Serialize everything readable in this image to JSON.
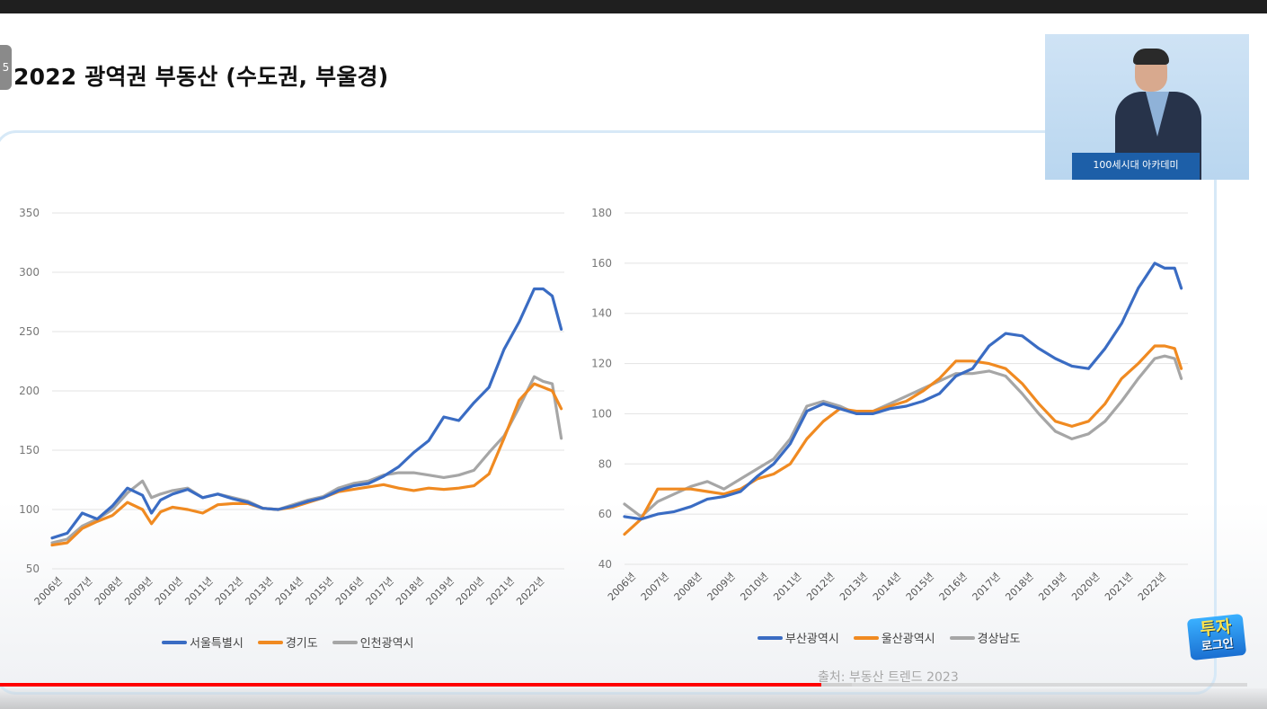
{
  "slide": {
    "number": "5",
    "title": "2022 광역권 부동산 (수도권, 부울경)",
    "source": "출처: 부동산 트렌드 2023"
  },
  "webcam": {
    "podium_text": "100세시대 아카데미"
  },
  "logo": {
    "line1": "투자",
    "line2": "로그인"
  },
  "video": {
    "played_fraction": 0.648,
    "buffered_fraction": 0.672
  },
  "chart_data": [
    {
      "type": "line",
      "title": "",
      "ylim": [
        50,
        350
      ],
      "yticks": [
        50,
        100,
        150,
        200,
        250,
        300,
        350
      ],
      "categories": [
        "2006년",
        "2007년",
        "2008년",
        "2009년",
        "2010년",
        "2011년",
        "2012년",
        "2013년",
        "2014년",
        "2015년",
        "2016년",
        "2017년",
        "2018년",
        "2019년",
        "2020년",
        "2021년",
        "2022년"
      ],
      "x": [
        2006.0,
        2006.5,
        2007.0,
        2007.5,
        2008.0,
        2008.5,
        2009.0,
        2009.3,
        2009.6,
        2010.0,
        2010.5,
        2011.0,
        2011.5,
        2012.0,
        2012.5,
        2013.0,
        2013.5,
        2014.0,
        2014.5,
        2015.0,
        2015.5,
        2016.0,
        2016.5,
        2017.0,
        2017.5,
        2018.0,
        2018.5,
        2019.0,
        2019.5,
        2020.0,
        2020.5,
        2021.0,
        2021.5,
        2022.0,
        2022.3,
        2022.6,
        2022.9
      ],
      "legend_position": "bottom",
      "series": [
        {
          "name": "서울특별시",
          "color": "#3a6cc3",
          "values": [
            76,
            80,
            97,
            92,
            103,
            118,
            112,
            97,
            108,
            113,
            117,
            110,
            113,
            109,
            106,
            101,
            100,
            103,
            107,
            110,
            116,
            120,
            122,
            128,
            136,
            148,
            158,
            178,
            175,
            190,
            203,
            235,
            258,
            286,
            286,
            280,
            252
          ]
        },
        {
          "name": "경기도",
          "color": "#f08a21",
          "values": [
            70,
            72,
            84,
            90,
            95,
            106,
            100,
            88,
            98,
            102,
            100,
            97,
            104,
            105,
            105,
            101,
            100,
            102,
            106,
            110,
            115,
            117,
            119,
            121,
            118,
            116,
            118,
            117,
            118,
            120,
            130,
            160,
            192,
            206,
            203,
            200,
            185
          ]
        },
        {
          "name": "인천광역시",
          "color": "#a6a6a6",
          "values": [
            72,
            75,
            86,
            92,
            100,
            114,
            124,
            110,
            113,
            116,
            118,
            110,
            113,
            110,
            107,
            101,
            100,
            104,
            108,
            111,
            118,
            122,
            124,
            129,
            131,
            131,
            129,
            127,
            129,
            133,
            148,
            162,
            186,
            212,
            208,
            206,
            160
          ]
        }
      ]
    },
    {
      "type": "line",
      "title": "",
      "ylim": [
        40,
        180
      ],
      "yticks": [
        40,
        60,
        80,
        100,
        120,
        140,
        160,
        180
      ],
      "categories": [
        "2006년",
        "2007년",
        "2008년",
        "2009년",
        "2010년",
        "2011년",
        "2012년",
        "2013년",
        "2014년",
        "2015년",
        "2016년",
        "2017년",
        "2018년",
        "2019년",
        "2020년",
        "2021년",
        "2022년"
      ],
      "x": [
        2006.0,
        2006.5,
        2007.0,
        2007.5,
        2008.0,
        2008.5,
        2009.0,
        2009.5,
        2010.0,
        2010.5,
        2011.0,
        2011.5,
        2012.0,
        2012.5,
        2013.0,
        2013.5,
        2014.0,
        2014.5,
        2015.0,
        2015.5,
        2016.0,
        2016.5,
        2017.0,
        2017.5,
        2018.0,
        2018.5,
        2019.0,
        2019.5,
        2020.0,
        2020.5,
        2021.0,
        2021.5,
        2022.0,
        2022.3,
        2022.6,
        2022.8
      ],
      "legend_position": "bottom",
      "series": [
        {
          "name": "부산광역시",
          "color": "#3a6cc3",
          "values": [
            59,
            58,
            60,
            61,
            63,
            66,
            67,
            69,
            75,
            80,
            88,
            101,
            104,
            102,
            100,
            100,
            102,
            103,
            105,
            108,
            115,
            118,
            127,
            132,
            131,
            126,
            122,
            119,
            118,
            126,
            136,
            150,
            160,
            158,
            158,
            150
          ]
        },
        {
          "name": "울산광역시",
          "color": "#f08a21",
          "values": [
            52,
            58,
            70,
            70,
            70,
            69,
            68,
            70,
            74,
            76,
            80,
            90,
            97,
            102,
            101,
            101,
            103,
            105,
            109,
            114,
            121,
            121,
            120,
            118,
            112,
            104,
            97,
            95,
            97,
            104,
            114,
            120,
            127,
            127,
            126,
            118
          ]
        },
        {
          "name": "경상남도",
          "color": "#a6a6a6",
          "values": [
            64,
            59,
            65,
            68,
            71,
            73,
            70,
            74,
            78,
            82,
            90,
            103,
            105,
            103,
            100,
            101,
            104,
            107,
            110,
            113,
            116,
            116,
            117,
            115,
            108,
            100,
            93,
            90,
            92,
            97,
            105,
            114,
            122,
            123,
            122,
            114
          ]
        }
      ]
    }
  ]
}
